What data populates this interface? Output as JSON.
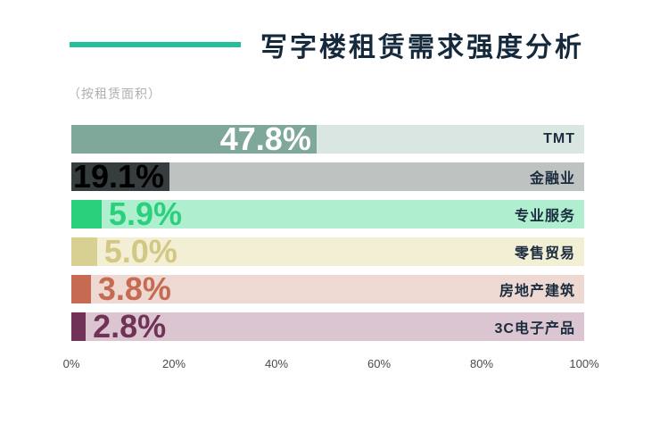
{
  "theme": {
    "accent": "#27BE9C",
    "title_color": "#15293C",
    "subtitle_color": "#AFAFAF",
    "category_label_color": "#1A2C3E",
    "axis_label_color": "#4A4A4A",
    "background": "#FFFFFF"
  },
  "chart_data": {
    "type": "bar",
    "orientation": "horizontal",
    "title": "写字楼租赁需求强度分析",
    "subtitle": "（按租赁面积）",
    "unit": "%",
    "xlim": [
      0,
      100
    ],
    "x_ticks": [
      "0%",
      "20%",
      "40%",
      "60%",
      "80%",
      "100%"
    ],
    "categories": [
      "TMT",
      "金融业",
      "专业服务",
      "零售贸易",
      "房地产建筑",
      "3C电子产品"
    ],
    "values": [
      47.8,
      19.1,
      5.9,
      5.0,
      3.8,
      2.8
    ],
    "value_labels": [
      "47.8%",
      "19.1%",
      "5.9%",
      "5.0%",
      "3.8%",
      "2.8%"
    ],
    "bar_colors": [
      "#7FA89A",
      "#363D3F",
      "#2BD07D",
      "#D8CF92",
      "#C66A52",
      "#713257"
    ],
    "track_colors": [
      "#DAE6E1",
      "#BEC3C2",
      "#AFEFD0",
      "#F2EFD4",
      "#EDD8D2",
      "#DBC5D1"
    ],
    "value_label_colors": [
      "#FFFFFF",
      "#000000",
      "#2BD07D",
      "#D2C783",
      "#C66A52",
      "#713257"
    ],
    "value_label_positions": [
      "inside-right",
      "inside-left",
      "outside",
      "outside",
      "outside",
      "outside"
    ],
    "legend": "none",
    "grid": "off"
  }
}
